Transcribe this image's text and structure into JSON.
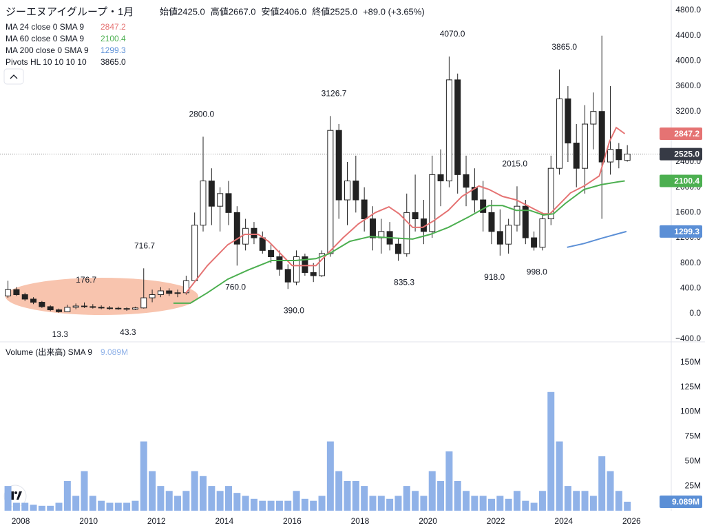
{
  "header": {
    "title": "ジーエヌアイグループ・1月",
    "ohlc": [
      "始値2425.0",
      "高値2667.0",
      "安値2406.0",
      "終値2525.0",
      "+89.0 (+3.65%)"
    ]
  },
  "chart_data": [
    {
      "type": "candlestick",
      "xlim": [
        2007.39,
        2027.17
      ],
      "ylim": [
        -436,
        4964
      ],
      "yticks": [
        {
          "value": -400,
          "label": "−400.0"
        },
        {
          "value": 0,
          "label": "0.0"
        },
        {
          "value": 400,
          "label": "400.0"
        },
        {
          "value": 800,
          "label": "800.0"
        },
        {
          "value": 1200,
          "label": "1200.0"
        },
        {
          "value": 1600,
          "label": "1600.0"
        },
        {
          "value": 2000,
          "label": "2000.0"
        },
        {
          "value": 2400,
          "label": "2400.0"
        },
        {
          "value": 2800,
          "label": "2800.0"
        },
        {
          "value": 3200,
          "label": "3200.0"
        },
        {
          "value": 3600,
          "label": "3600.0"
        },
        {
          "value": 4000,
          "label": "4000.0"
        },
        {
          "value": 4400,
          "label": "4400.0"
        },
        {
          "value": 4800,
          "label": "4800.0"
        }
      ],
      "xticks": [
        2008,
        2010,
        2012,
        2014,
        2016,
        2018,
        2020,
        2022,
        2024,
        2026
      ],
      "x": [
        2007.625,
        2007.875,
        2008.125,
        2008.375,
        2008.625,
        2008.875,
        2009.125,
        2009.375,
        2009.625,
        2009.875,
        2010.125,
        2010.375,
        2010.625,
        2010.875,
        2011.125,
        2011.375,
        2011.625,
        2011.875,
        2012.125,
        2012.375,
        2012.625,
        2012.875,
        2013.125,
        2013.375,
        2013.625,
        2013.875,
        2014.125,
        2014.375,
        2014.625,
        2014.875,
        2015.125,
        2015.375,
        2015.625,
        2015.875,
        2016.125,
        2016.375,
        2016.625,
        2016.875,
        2017.125,
        2017.375,
        2017.625,
        2017.875,
        2018.125,
        2018.375,
        2018.625,
        2018.875,
        2019.125,
        2019.375,
        2019.625,
        2019.875,
        2020.125,
        2020.375,
        2020.625,
        2020.875,
        2021.125,
        2021.375,
        2021.625,
        2021.875,
        2022.125,
        2022.375,
        2022.625,
        2022.875,
        2023.125,
        2023.375,
        2023.625,
        2023.875,
        2024.125,
        2024.375,
        2024.625,
        2024.875,
        2025.125,
        2025.375,
        2025.625,
        2025.875
      ],
      "open": [
        280,
        380,
        300,
        230,
        180,
        110,
        60,
        30,
        100,
        120,
        110,
        100,
        90,
        85,
        80,
        70,
        90,
        250,
        300,
        360,
        320,
        330,
        520,
        1400,
        2100,
        1700,
        1900,
        1600,
        1100,
        1350,
        1200,
        1000,
        900,
        700,
        500,
        900,
        650,
        600,
        950,
        2900,
        1800,
        2100,
        1800,
        1500,
        1200,
        1300,
        1100,
        950,
        1600,
        1500,
        1300,
        2200,
        2100,
        3700,
        2200,
        2000,
        1800,
        1600,
        1300,
        1100,
        1400,
        1700,
        1200,
        1050,
        1500,
        2300,
        3400,
        2700,
        2300,
        3000,
        3200,
        2400,
        2600,
        2425
      ],
      "high": [
        520,
        420,
        330,
        260,
        200,
        130,
        80,
        140,
        160,
        176.7,
        150,
        130,
        120,
        110,
        100,
        110,
        716.7,
        380,
        420,
        400,
        380,
        600,
        1600,
        2800,
        2300,
        2000,
        2100,
        1700,
        1500,
        1450,
        1300,
        1100,
        1000,
        780,
        1000,
        950,
        800,
        1000,
        3126.7,
        3000,
        2400,
        2500,
        2000,
        1700,
        1500,
        1450,
        1200,
        1900,
        2200,
        1800,
        2500,
        2600,
        4070,
        3800,
        2500,
        2300,
        2100,
        1800,
        1650,
        1500,
        2015,
        1800,
        1300,
        1600,
        2500,
        3865,
        3600,
        3000,
        3300,
        3500,
        4400,
        3600,
        2700,
        2667
      ],
      "low": [
        250,
        280,
        200,
        150,
        90,
        40,
        13.3,
        25,
        70,
        90,
        80,
        70,
        60,
        60,
        43.3,
        55,
        80,
        180,
        260,
        280,
        260,
        300,
        500,
        1300,
        1400,
        1300,
        1400,
        760,
        1000,
        1100,
        950,
        800,
        600,
        390,
        450,
        600,
        500,
        580,
        900,
        1500,
        1400,
        1600,
        1300,
        1000,
        950,
        1000,
        835.3,
        900,
        1300,
        1100,
        1200,
        1700,
        2000,
        1900,
        1700,
        1600,
        1300,
        1100,
        918,
        950,
        1300,
        1100,
        998,
        1000,
        1400,
        2200,
        2400,
        2000,
        1900,
        2600,
        1500,
        2200,
        2300,
        2406
      ],
      "close": [
        380,
        300,
        230,
        180,
        110,
        60,
        30,
        100,
        120,
        110,
        100,
        90,
        85,
        80,
        70,
        90,
        250,
        300,
        360,
        320,
        330,
        520,
        1400,
        2100,
        1700,
        1900,
        1600,
        1100,
        1350,
        1200,
        1000,
        900,
        700,
        500,
        900,
        650,
        600,
        950,
        2900,
        1800,
        2100,
        1800,
        1500,
        1200,
        1300,
        1100,
        950,
        1600,
        1500,
        1300,
        2200,
        2100,
        3700,
        2200,
        2000,
        1800,
        1600,
        1300,
        1100,
        1400,
        1700,
        1200,
        1050,
        1500,
        2300,
        3400,
        2700,
        2300,
        3000,
        3200,
        2400,
        2600,
        2436,
        2525
      ],
      "last_price": {
        "value": 2525,
        "label": "2525.0"
      },
      "series": [
        {
          "name": "MA 24 close 0 SMA 9",
          "color": "#e57373",
          "last": {
            "value": 2847.2,
            "label": "2847.2"
          },
          "x": [
            2012.87,
            2013.5,
            2014.1,
            2014.6,
            2015.0,
            2015.3,
            2015.7,
            2016.0,
            2016.3,
            2016.7,
            2017.0,
            2017.5,
            2017.95,
            2018.45,
            2018.85,
            2019.15,
            2019.55,
            2019.85,
            2020.17,
            2020.6,
            2021.0,
            2021.5,
            2021.8,
            2022.2,
            2022.6,
            2023.0,
            2023.4,
            2023.6,
            2023.9,
            2024.2,
            2024.6,
            2025.05,
            2025.35,
            2025.55,
            2025.8
          ],
          "values": [
            327,
            760,
            1090,
            1255,
            1255,
            1145,
            925,
            760,
            760,
            760,
            925,
            1200,
            1420,
            1600,
            1690,
            1580,
            1365,
            1365,
            1470,
            1635,
            1855,
            2020,
            1965,
            1855,
            1800,
            1690,
            1580,
            1580,
            1745,
            1910,
            2020,
            2180,
            2725,
            2945,
            2847.2
          ]
        },
        {
          "name": "MA 60 close 0 SMA 9",
          "color": "#4caf50",
          "last": {
            "value": 2100.4,
            "label": "2100.4"
          },
          "x": [
            2012.5,
            2013.0,
            2013.5,
            2014.1,
            2014.7,
            2015.4,
            2016.1,
            2016.7,
            2017.1,
            2017.7,
            2018.3,
            2018.9,
            2019.55,
            2020.07,
            2020.6,
            2021.2,
            2021.8,
            2022.2,
            2022.6,
            2023.0,
            2023.4,
            2023.7,
            2024.05,
            2024.6,
            2025.1,
            2025.6,
            2025.8
          ],
          "values": [
            165,
            165,
            330,
            545,
            690,
            840,
            840,
            870,
            950,
            1145,
            1220,
            1200,
            1180,
            1255,
            1365,
            1530,
            1710,
            1710,
            1635,
            1635,
            1560,
            1580,
            1745,
            1965,
            2040,
            2085,
            2100.4
          ]
        },
        {
          "name": "MA 200 close 0 SMA 9",
          "color": "#5b8fd6",
          "last": {
            "value": 1299.3,
            "label": "1299.3"
          },
          "x": [
            2024.1,
            2024.6,
            2025.1,
            2025.5,
            2025.85
          ],
          "values": [
            1050,
            1110,
            1190,
            1250,
            1299.3
          ]
        }
      ],
      "pivots_name": "Pivots HL 10 10 10 10",
      "pivots_last": "3865.0",
      "pivots": [
        {
          "x": 2009.93,
          "value": 176.7,
          "label": "176.7",
          "pos": "high"
        },
        {
          "x": 2009.16,
          "value": 13.3,
          "label": "13.3",
          "pos": "low"
        },
        {
          "x": 2011.16,
          "value": 43.3,
          "label": "43.3",
          "pos": "low"
        },
        {
          "x": 2011.65,
          "value": 716.7,
          "label": "716.7",
          "pos": "high"
        },
        {
          "x": 2013.33,
          "value": 2800,
          "label": "2800.0",
          "pos": "high"
        },
        {
          "x": 2014.33,
          "value": 760,
          "label": "760.0",
          "pos": "low"
        },
        {
          "x": 2016.05,
          "value": 390,
          "label": "390.0",
          "pos": "low"
        },
        {
          "x": 2017.23,
          "value": 3126.7,
          "label": "3126.7",
          "pos": "high"
        },
        {
          "x": 2019.3,
          "value": 835.3,
          "label": "835.3",
          "pos": "low"
        },
        {
          "x": 2020.72,
          "value": 4070,
          "label": "4070.0",
          "pos": "high"
        },
        {
          "x": 2021.96,
          "value": 918,
          "label": "918.0",
          "pos": "low"
        },
        {
          "x": 2022.56,
          "value": 2015,
          "label": "2015.0",
          "pos": "high"
        },
        {
          "x": 2023.21,
          "value": 998,
          "label": "998.0",
          "pos": "low"
        },
        {
          "x": 2024.02,
          "value": 3865,
          "label": "3865.0",
          "pos": "high"
        }
      ]
    },
    {
      "type": "bar",
      "name": "Volume (出来高) SMA 9",
      "color": "#90b2e8",
      "ylim": [
        0,
        170
      ],
      "last": {
        "value": 9.089,
        "label": "9.089M"
      },
      "yticks": [
        {
          "value": 25,
          "label": "25M"
        },
        {
          "value": 50,
          "label": "50M"
        },
        {
          "value": 75,
          "label": "75M"
        },
        {
          "value": 100,
          "label": "100M"
        },
        {
          "value": 125,
          "label": "125M"
        },
        {
          "value": 150,
          "label": "150M"
        }
      ],
      "values": [
        25,
        8,
        8,
        6,
        5,
        5,
        8,
        30,
        15,
        40,
        15,
        10,
        8,
        8,
        8,
        10,
        70,
        40,
        25,
        20,
        15,
        20,
        40,
        35,
        25,
        20,
        25,
        18,
        15,
        12,
        10,
        10,
        10,
        10,
        20,
        12,
        10,
        15,
        70,
        40,
        30,
        30,
        25,
        15,
        15,
        12,
        15,
        25,
        20,
        15,
        40,
        30,
        60,
        30,
        20,
        15,
        15,
        12,
        15,
        12,
        20,
        10,
        8,
        20,
        120,
        70,
        25,
        20,
        20,
        15,
        55,
        40,
        20,
        9.089
      ]
    }
  ]
}
